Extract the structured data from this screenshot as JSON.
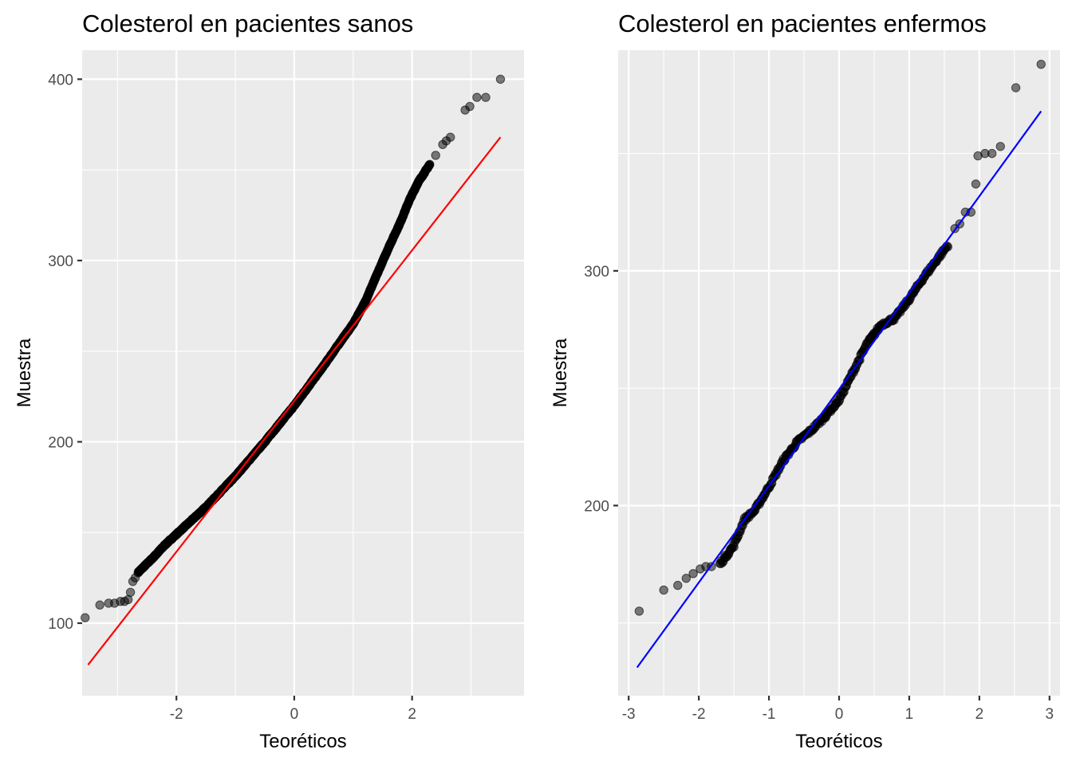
{
  "chart_data": [
    {
      "type": "scatter",
      "subtype": "qq-plot",
      "title": "Colesterol en pacientes sanos",
      "xlabel": "Teoréticos",
      "ylabel": "Muestra",
      "xlim": [
        -3.6,
        3.9
      ],
      "ylim": [
        60,
        416
      ],
      "xticks": [
        -2,
        0,
        2
      ],
      "xtick_labels": [
        "-2",
        "0",
        "2"
      ],
      "yticks": [
        100,
        200,
        300,
        400
      ],
      "ytick_labels": [
        "100",
        "200",
        "300",
        "400"
      ],
      "grid": true,
      "point_color": "#000000",
      "point_opacity": 0.5,
      "line_color": "#ff0000",
      "reference_line": {
        "x": [
          -3.5,
          3.5
        ],
        "y": [
          77,
          368
        ]
      },
      "curve": {
        "x": [
          -2.65,
          -2.4,
          -2.2,
          -2.0,
          -1.8,
          -1.5,
          -1.0,
          -0.5,
          0.0,
          0.5,
          0.8,
          1.0,
          1.2,
          1.4,
          1.6,
          1.8,
          1.95,
          2.1,
          2.3
        ],
        "y": [
          128,
          136,
          143,
          149,
          155,
          164,
          181,
          200,
          220,
          242,
          256,
          265,
          277,
          292,
          307,
          321,
          333,
          343,
          353
        ]
      },
      "tail_points": [
        {
          "x": -3.55,
          "y": 103
        },
        {
          "x": -3.3,
          "y": 110
        },
        {
          "x": -3.15,
          "y": 111
        },
        {
          "x": -3.05,
          "y": 111
        },
        {
          "x": -2.95,
          "y": 112
        },
        {
          "x": -2.88,
          "y": 112
        },
        {
          "x": -2.82,
          "y": 113
        },
        {
          "x": -2.78,
          "y": 117
        },
        {
          "x": -2.74,
          "y": 123
        },
        {
          "x": -2.7,
          "y": 125
        },
        {
          "x": 2.4,
          "y": 358
        },
        {
          "x": 2.52,
          "y": 364
        },
        {
          "x": 2.58,
          "y": 366
        },
        {
          "x": 2.65,
          "y": 368
        },
        {
          "x": 2.9,
          "y": 383
        },
        {
          "x": 2.98,
          "y": 385
        },
        {
          "x": 3.1,
          "y": 390
        },
        {
          "x": 3.25,
          "y": 390
        },
        {
          "x": 3.5,
          "y": 400
        }
      ]
    },
    {
      "type": "scatter",
      "subtype": "qq-plot",
      "title": "Colesterol en pacientes enfermos",
      "xlabel": "Teoréticos",
      "ylabel": "Muestra",
      "xlim": [
        -3.15,
        3.15
      ],
      "ylim": [
        119,
        394
      ],
      "xticks": [
        -3,
        -2,
        -1,
        0,
        1,
        2,
        3
      ],
      "xtick_labels": [
        "-3",
        "-2",
        "-1",
        "0",
        "1",
        "2",
        "3"
      ],
      "yticks": [
        200,
        300
      ],
      "ytick_labels": [
        "200",
        "300"
      ],
      "grid": true,
      "point_color": "#000000",
      "point_opacity": 0.5,
      "line_color": "#0000ff",
      "reference_line": {
        "x": [
          -2.88,
          2.88
        ],
        "y": [
          131,
          368
        ]
      },
      "curve": {
        "x": [
          -1.7,
          -1.5,
          -1.35,
          -1.2,
          -1.0,
          -0.8,
          -0.6,
          -0.4,
          -0.2,
          0.0,
          0.2,
          0.4,
          0.6,
          0.8,
          1.0,
          1.2,
          1.4,
          1.55
        ],
        "y": [
          175,
          183,
          194,
          198,
          208,
          219,
          227,
          232,
          238,
          245,
          257,
          269,
          277,
          280,
          288,
          297,
          305,
          311
        ]
      },
      "tail_points": [
        {
          "x": -2.85,
          "y": 155
        },
        {
          "x": -2.5,
          "y": 164
        },
        {
          "x": -2.3,
          "y": 166
        },
        {
          "x": -2.18,
          "y": 169
        },
        {
          "x": -2.08,
          "y": 171
        },
        {
          "x": -1.98,
          "y": 173
        },
        {
          "x": -1.9,
          "y": 174
        },
        {
          "x": -1.82,
          "y": 174
        },
        {
          "x": 1.65,
          "y": 318
        },
        {
          "x": 1.72,
          "y": 320
        },
        {
          "x": 1.8,
          "y": 325
        },
        {
          "x": 1.88,
          "y": 325
        },
        {
          "x": 1.95,
          "y": 337
        },
        {
          "x": 1.98,
          "y": 349
        },
        {
          "x": 2.08,
          "y": 350
        },
        {
          "x": 2.18,
          "y": 350
        },
        {
          "x": 2.3,
          "y": 353
        },
        {
          "x": 2.52,
          "y": 378
        },
        {
          "x": 2.88,
          "y": 388
        }
      ]
    }
  ]
}
